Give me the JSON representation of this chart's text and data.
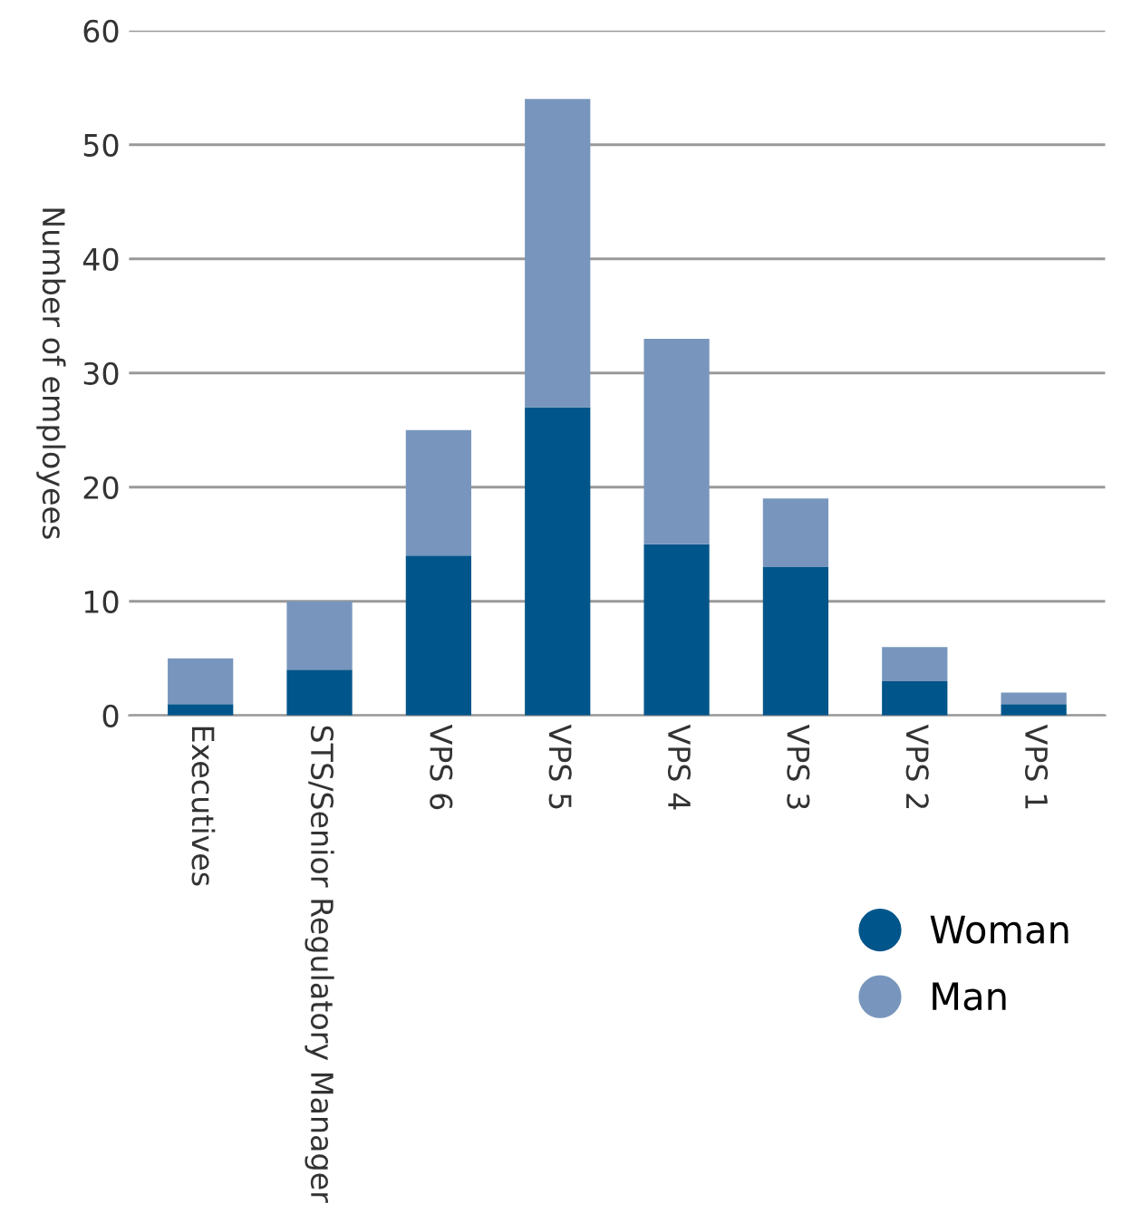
{
  "chart_data": {
    "type": "bar",
    "stacked": true,
    "ylabel": "Number of employees",
    "categories": [
      "Executives",
      "STS/Senior Regulatory Manager",
      "VPS 6",
      "VPS 5",
      "VPS 4",
      "VPS 3",
      "VPS 2",
      "VPS 1"
    ],
    "series": [
      {
        "name": "Woman",
        "color": "#00558a",
        "values": [
          1,
          4,
          14,
          27,
          15,
          13,
          3,
          1
        ]
      },
      {
        "name": "Man",
        "color": "#7896bd",
        "values": [
          4,
          6,
          11,
          27,
          18,
          6,
          3,
          1
        ]
      }
    ],
    "ylim": [
      0,
      60
    ],
    "yticks": [
      0,
      10,
      20,
      30,
      40,
      50,
      60
    ],
    "grid": "y",
    "legend": "bottom right"
  }
}
